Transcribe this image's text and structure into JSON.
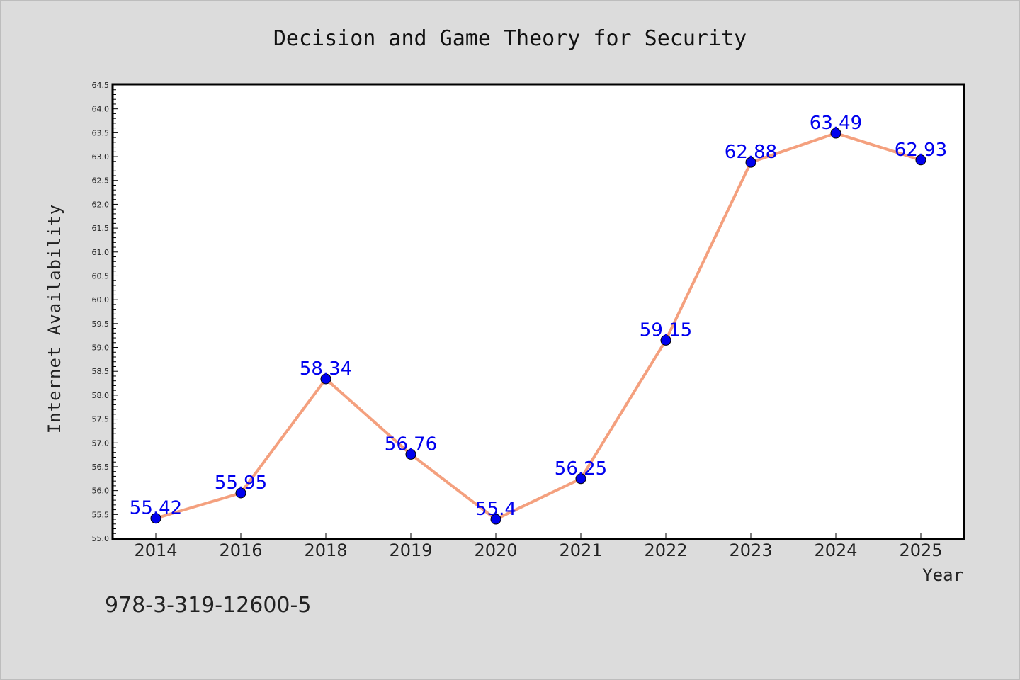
{
  "chart_data": {
    "type": "line",
    "title": "Decision and Game Theory for Security",
    "xlabel": "Year",
    "ylabel": "Internet Availability",
    "categories": [
      "2014",
      "2016",
      "2018",
      "2019",
      "2020",
      "2021",
      "2022",
      "2023",
      "2024",
      "2025"
    ],
    "series": [
      {
        "values": [
          55.42,
          55.95,
          58.34,
          56.76,
          55.4,
          56.25,
          59.15,
          62.88,
          63.49,
          62.93
        ],
        "data_labels": [
          "55.42",
          "55.95",
          "58.34",
          "56.76",
          "55.4",
          "56.25",
          "59.15",
          "62.88",
          "63.49",
          "62.93"
        ],
        "line_color": "#f4a07e",
        "marker_color": "#0000ee"
      }
    ],
    "ylim": [
      55.0,
      64.5
    ],
    "yticks": [
      "55.0",
      "55.5",
      "56.0",
      "56.5",
      "57.0",
      "57.5",
      "58.0",
      "58.5",
      "59.0",
      "59.5",
      "60.0",
      "60.5",
      "61.0",
      "61.5",
      "62.0",
      "62.5",
      "63.0",
      "63.5",
      "64.0",
      "64.5"
    ],
    "grid": false,
    "legend": "none"
  },
  "footer_text": "978-3-319-12600-5",
  "colors": {
    "background": "#dcdcdc",
    "plot_background": "#ffffff",
    "data_label": "#0000ee"
  }
}
